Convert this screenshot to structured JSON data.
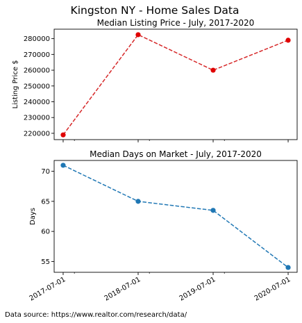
{
  "suptitle": "Kingston NY - Home Sales Data",
  "source_note": "Data source: https://www.realtor.com/research/data/",
  "chart_data": [
    {
      "type": "line",
      "title": "Median Listing Price - July, 2017-2020",
      "xlabel": "",
      "ylabel": "Listing Price $",
      "x": [
        "2017-07-01",
        "2018-07-01",
        "2019-07-01",
        "2020-07-01"
      ],
      "values": [
        219000,
        282500,
        260000,
        279000
      ],
      "yticks": [
        220000,
        230000,
        240000,
        250000,
        260000,
        270000,
        280000
      ],
      "ylim": [
        216000,
        286000
      ],
      "line_style": "dashed",
      "line_color": "#d62728",
      "marker_color": "#e00000",
      "grid": false
    },
    {
      "type": "line",
      "title": "Median Days on Market - July, 2017-2020",
      "xlabel": "",
      "ylabel": "Days",
      "x": [
        "2017-07-01",
        "2018-07-01",
        "2019-07-01",
        "2020-07-01"
      ],
      "values": [
        71,
        65,
        63.5,
        54
      ],
      "yticks": [
        55,
        60,
        65,
        70
      ],
      "ylim": [
        53.2,
        71.8
      ],
      "line_style": "dashed",
      "line_color": "#1f77b4",
      "marker_color": "#1f77b4",
      "grid": false
    }
  ]
}
